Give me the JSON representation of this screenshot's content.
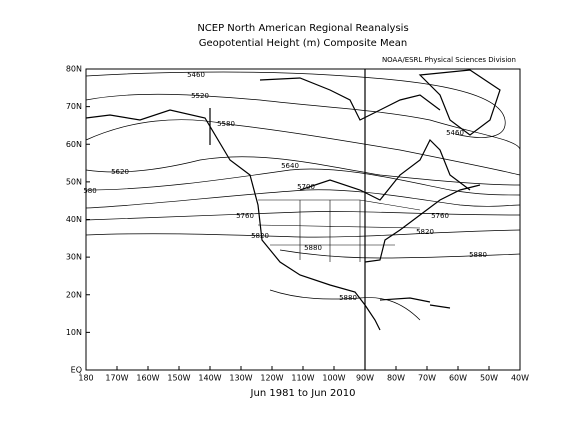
{
  "title": "NCEP North American Regional Reanalysis",
  "subtitle": "Geopotential Height (m) Composite Mean",
  "credit": "NOAA/ESRL Physical Sciences Division",
  "footer": "Jun 1981 to Jun 2010",
  "lat_labels": [
    "EQ",
    "10N",
    "20N",
    "30N",
    "40N",
    "50N",
    "60N",
    "70N",
    "80N"
  ],
  "lon_labels": [
    "180",
    "170W",
    "160W",
    "150W",
    "140W",
    "130W",
    "120W",
    "110W",
    "100W",
    "90W",
    "80W",
    "70W",
    "60W",
    "50W",
    "40W"
  ],
  "contour_labels": [
    "5460",
    "5520",
    "5580",
    "5620",
    "580",
    "5640",
    "5700",
    "5760",
    "5760",
    "5820",
    "5820",
    "5880",
    "5880",
    "5880",
    "5460"
  ]
}
